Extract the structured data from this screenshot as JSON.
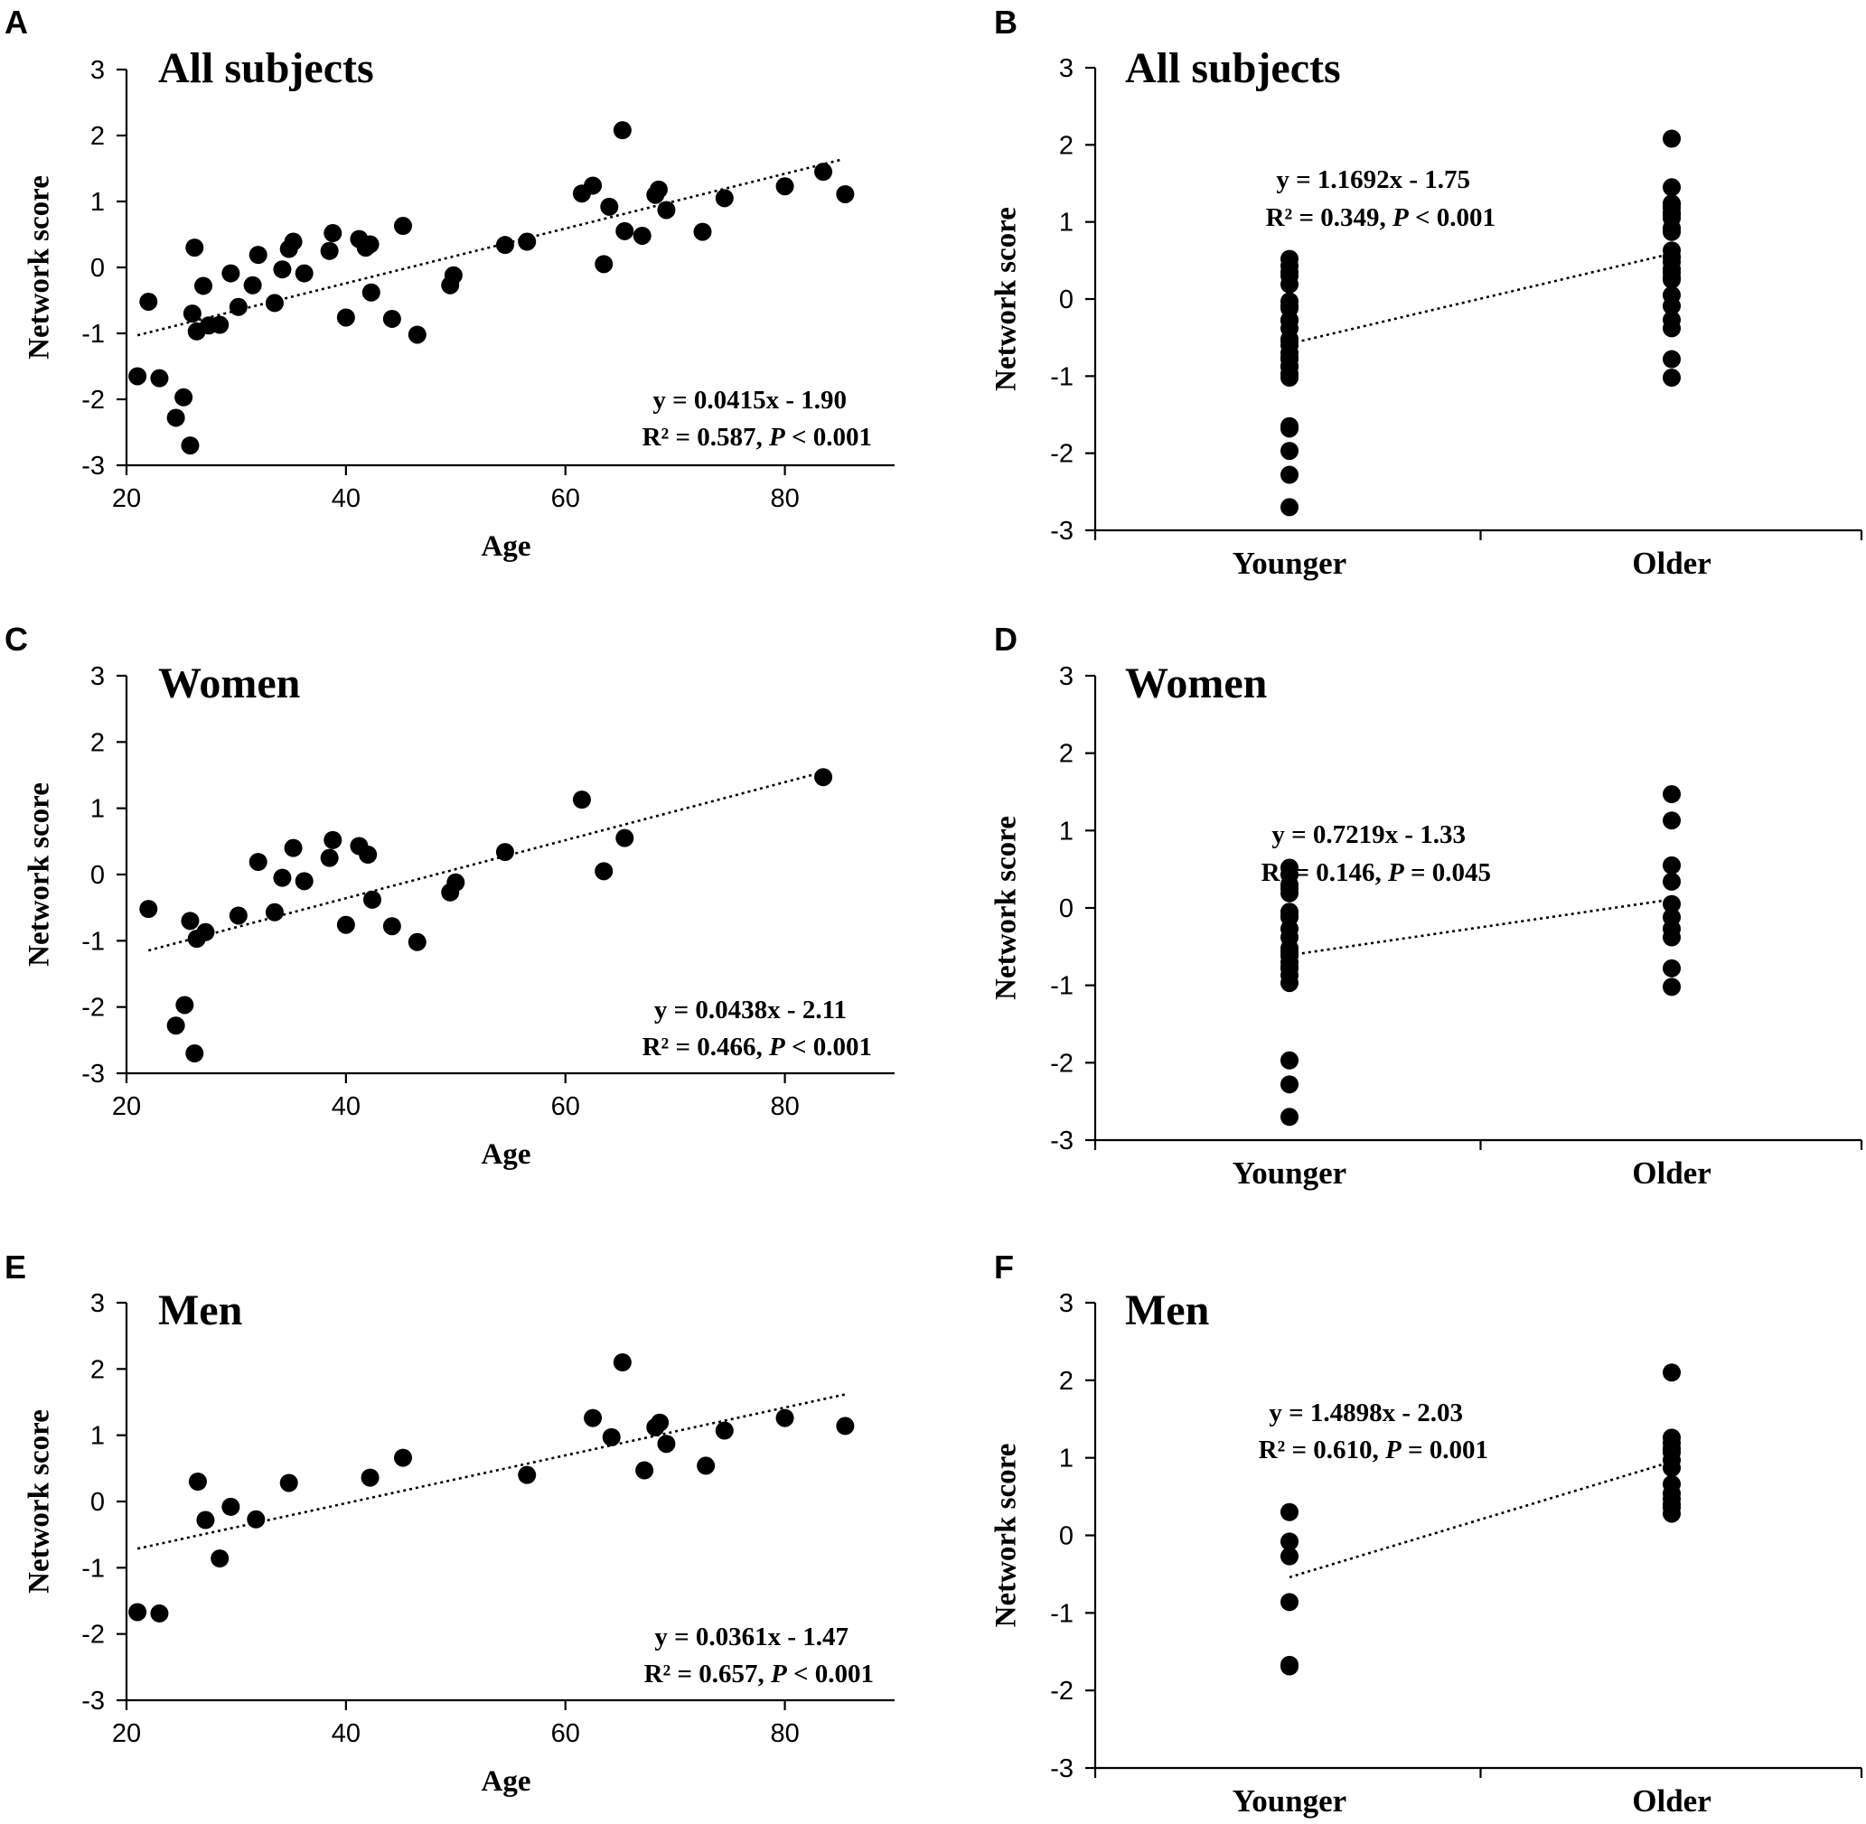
{
  "chart_data": [
    {
      "panel": "A",
      "type": "scatter",
      "title": "All subjects",
      "xlabel": "Age",
      "ylabel": "Network score",
      "xlim": [
        20,
        90
      ],
      "ylim": [
        -3,
        3
      ],
      "xticks": [
        "20",
        "40",
        "60",
        "80"
      ],
      "yticks": [
        "-3",
        "-2",
        "-1",
        "0",
        "1",
        "2",
        "3"
      ],
      "equation": "y = 0.0415x - 1.90",
      "stats_prefix": "R² = 0.587, ",
      "p_symbol": "P",
      "p_text": " < 0.001",
      "trend": {
        "slope": 0.0415,
        "intercept": -1.9,
        "x_range": [
          21,
          85
        ]
      },
      "points": {
        "x": [
          21,
          22,
          23,
          24.5,
          25.2,
          25.8,
          26,
          26.2,
          26.4,
          27,
          27.5,
          28.5,
          29.5,
          30.2,
          31.5,
          32,
          33.5,
          34.2,
          34.8,
          35.2,
          36.2,
          38.5,
          38.8,
          40,
          41.2,
          41.8,
          42.2,
          42.3,
          44.2,
          45.2,
          46.5,
          49.5,
          49.8,
          54.5,
          56.5,
          61.5,
          62.5,
          63.5,
          64,
          65.2,
          65.4,
          67,
          68.2,
          68.5,
          69.2,
          72.5,
          74.5,
          80,
          83.5,
          85.5
        ],
        "y": [
          -1.65,
          -0.52,
          -1.68,
          -2.28,
          -1.97,
          -2.7,
          -0.7,
          0.3,
          -0.97,
          -0.28,
          -0.88,
          -0.87,
          -0.09,
          -0.6,
          -0.27,
          0.19,
          -0.54,
          -0.03,
          0.28,
          0.39,
          -0.09,
          0.25,
          0.52,
          -0.76,
          0.43,
          0.3,
          0.35,
          -0.38,
          -0.78,
          0.63,
          -1.02,
          -0.27,
          -0.12,
          0.34,
          0.39,
          1.12,
          1.24,
          0.05,
          0.92,
          2.08,
          0.55,
          0.48,
          1.1,
          1.18,
          0.87,
          0.54,
          1.05,
          1.23,
          1.45,
          1.11
        ]
      }
    },
    {
      "panel": "B",
      "type": "scatter",
      "title": "All subjects",
      "xlabel": "",
      "ylabel": "Network score",
      "categories": [
        "Younger",
        "Older"
      ],
      "ylim": [
        -3,
        3
      ],
      "yticks": [
        "-3",
        "-2",
        "-1",
        "0",
        "1",
        "2",
        "3"
      ],
      "equation": "y = 1.1692x - 1.75",
      "stats_prefix": "R² = 0.349, ",
      "p_symbol": "P",
      "p_text": " < 0.001",
      "trend": {
        "y_start": -0.58,
        "y_end": 0.59
      },
      "groups": [
        {
          "name": "Younger",
          "values": [
            0.52,
            0.43,
            0.35,
            0.3,
            0.19,
            -0.03,
            -0.09,
            -0.12,
            -0.27,
            -0.28,
            -0.38,
            -0.52,
            -0.54,
            -0.6,
            -0.7,
            -0.76,
            -0.78,
            -0.87,
            -0.88,
            -0.97,
            -1.02,
            -1.65,
            -1.68,
            -1.97,
            -2.28,
            -2.7
          ]
        },
        {
          "name": "Older",
          "values": [
            2.08,
            1.45,
            1.24,
            1.23,
            1.18,
            1.12,
            1.11,
            1.1,
            1.05,
            0.92,
            0.87,
            0.63,
            0.55,
            0.54,
            0.48,
            0.39,
            0.34,
            0.28,
            0.25,
            0.05,
            -0.09,
            -0.27,
            -0.38,
            -0.78,
            -1.02
          ]
        }
      ]
    },
    {
      "panel": "C",
      "type": "scatter",
      "title": "Women",
      "xlabel": "Age",
      "ylabel": "Network score",
      "xlim": [
        20,
        90
      ],
      "ylim": [
        -3,
        3
      ],
      "xticks": [
        "20",
        "40",
        "60",
        "80"
      ],
      "yticks": [
        "-3",
        "-2",
        "-1",
        "0",
        "1",
        "2",
        "3"
      ],
      "equation": "y = 0.0438x - 2.11",
      "stats_prefix": "R² = 0.466, ",
      "p_symbol": "P",
      "p_text": " < 0.001",
      "trend": {
        "slope": 0.0438,
        "intercept": -2.11,
        "x_range": [
          22,
          83.5
        ]
      },
      "points": {
        "x": [
          22,
          24.5,
          25.3,
          25.8,
          26.2,
          26.4,
          27.2,
          30.2,
          32,
          33.5,
          34.2,
          35.2,
          36.2,
          38.5,
          38.8,
          40,
          41.2,
          42,
          42.4,
          44.2,
          46.5,
          49.5,
          50,
          54.5,
          61.5,
          63.5,
          65.4,
          83.5
        ],
        "y": [
          -0.52,
          -2.28,
          -1.97,
          -0.7,
          -2.7,
          -0.97,
          -0.87,
          -0.62,
          0.19,
          -0.57,
          -0.05,
          0.4,
          -0.1,
          0.25,
          0.52,
          -0.76,
          0.43,
          0.3,
          -0.38,
          -0.78,
          -1.02,
          -0.27,
          -0.12,
          0.34,
          1.13,
          0.05,
          0.55,
          1.47
        ]
      }
    },
    {
      "panel": "D",
      "type": "scatter",
      "title": "Women",
      "xlabel": "",
      "ylabel": "Network score",
      "categories": [
        "Younger",
        "Older"
      ],
      "ylim": [
        -3,
        3
      ],
      "yticks": [
        "-3",
        "-2",
        "-1",
        "0",
        "1",
        "2",
        "3"
      ],
      "equation": "y = 0.7219x - 1.33",
      "stats_prefix": "R² = 0.146, ",
      "p_symbol": "P",
      "p_text": " = 0.045",
      "trend": {
        "y_start": -0.61,
        "y_end": 0.11
      },
      "groups": [
        {
          "name": "Younger",
          "values": [
            0.52,
            0.43,
            0.3,
            0.25,
            0.19,
            -0.05,
            -0.1,
            -0.12,
            -0.27,
            -0.38,
            -0.52,
            -0.57,
            -0.62,
            -0.7,
            -0.76,
            -0.78,
            -0.87,
            -0.97,
            -1.97,
            -2.28,
            -2.7
          ]
        },
        {
          "name": "Older",
          "values": [
            1.47,
            1.13,
            0.55,
            0.34,
            0.05,
            -0.12,
            -0.27,
            -0.38,
            -0.78,
            -1.02
          ]
        }
      ]
    },
    {
      "panel": "E",
      "type": "scatter",
      "title": "Men",
      "xlabel": "Age",
      "ylabel": "Network score",
      "xlim": [
        20,
        90
      ],
      "ylim": [
        -3,
        3
      ],
      "xticks": [
        "20",
        "40",
        "60",
        "80"
      ],
      "yticks": [
        "-3",
        "-2",
        "-1",
        "0",
        "1",
        "2",
        "3"
      ],
      "equation": "y = 0.0361x - 1.47",
      "stats_prefix": "R² = 0.657, ",
      "p_symbol": "P",
      "p_text": " < 0.001",
      "trend": {
        "slope": 0.0361,
        "intercept": -1.47,
        "x_range": [
          21,
          85.5
        ]
      },
      "points": {
        "x": [
          21,
          23,
          26.5,
          27.2,
          28.5,
          29.5,
          31.8,
          34.8,
          42.2,
          45.2,
          56.5,
          62.5,
          64.2,
          65.2,
          67.2,
          68.2,
          68.6,
          69.2,
          72.8,
          74.5,
          80,
          85.5
        ],
        "y": [
          -1.67,
          -1.69,
          0.3,
          -0.28,
          -0.86,
          -0.08,
          -0.27,
          0.28,
          0.36,
          0.66,
          0.4,
          1.26,
          0.97,
          2.1,
          0.47,
          1.12,
          1.19,
          0.87,
          0.54,
          1.07,
          1.26,
          1.14
        ]
      }
    },
    {
      "panel": "F",
      "type": "scatter",
      "title": "Men",
      "xlabel": "",
      "ylabel": "Network score",
      "categories": [
        "Younger",
        "Older"
      ],
      "ylim": [
        -3,
        3
      ],
      "yticks": [
        "-3",
        "-2",
        "-1",
        "0",
        "1",
        "2",
        "3"
      ],
      "equation": "y = 1.4898x - 2.03",
      "stats_prefix": "R² = 0.610, ",
      "p_symbol": "P",
      "p_text": " = 0.001",
      "trend": {
        "y_start": -0.54,
        "y_end": 0.95
      },
      "groups": [
        {
          "name": "Younger",
          "values": [
            0.3,
            -0.08,
            -0.27,
            -0.86,
            -1.67,
            -1.69
          ]
        },
        {
          "name": "Older",
          "values": [
            2.1,
            1.26,
            1.19,
            1.12,
            1.07,
            0.97,
            0.87,
            0.66,
            0.54,
            0.47,
            0.4,
            0.36,
            0.28
          ]
        }
      ]
    }
  ]
}
